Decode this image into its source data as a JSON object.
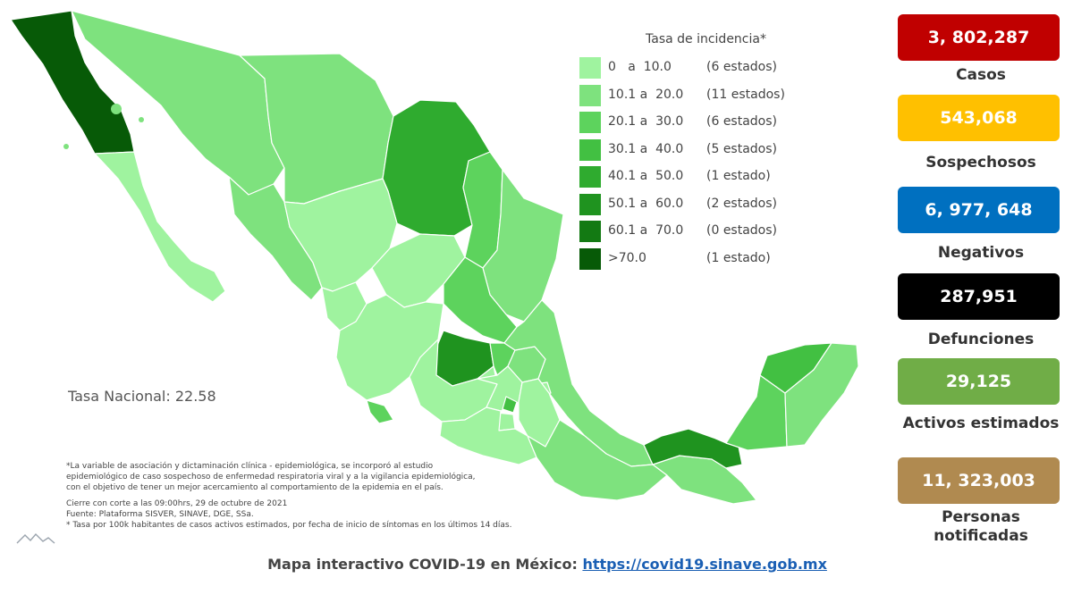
{
  "map": {
    "legend_title": "Tasa de incidencia*",
    "legend": [
      {
        "range": "0   a  10.0",
        "count": "(6 estados)",
        "color": "#9ff39f"
      },
      {
        "range": "10.1 a  20.0",
        "count": "(11 estados)",
        "color": "#7ee27e"
      },
      {
        "range": "20.1 a  30.0",
        "count": "(6 estados)",
        "color": "#5dd35d"
      },
      {
        "range": "30.1 a  40.0",
        "count": "(5 estados)",
        "color": "#42c042"
      },
      {
        "range": "40.1 a  50.0",
        "count": "(1 estado)",
        "color": "#2fab2f"
      },
      {
        "range": "50.1 a  60.0",
        "count": "(2 estados)",
        "color": "#1f931f"
      },
      {
        "range": "60.1 a  70.0",
        "count": "(0 estados)",
        "color": "#137a13"
      },
      {
        "range": ">70.0",
        "count": "(1 estado)",
        "color": "#075a07"
      }
    ],
    "tasa_nacional": "Tasa Nacional: 22.58"
  },
  "footnotes": {
    "lines_a": [
      "*La variable de asociación y dictaminación clínica - epidemiológica, se incorporó al estudio",
      "epidemiológico de caso sospechoso de enfermedad respiratoria viral y a la vigilancia epidemiológica,",
      "con el objetivo de tener un mejor acercamiento al comportamiento de la epidemia en el país."
    ],
    "lines_b": [
      "Cierre con corte a las 09:00hrs, 29 de octubre de 2021",
      "Fuente: Plataforma SISVER, SINAVE, DGE, SSa.",
      "* Tasa por 100k habitantes de casos activos estimados, por fecha de inicio de síntomas en los últimos 14 días."
    ]
  },
  "bottom": {
    "text": "Mapa interactivo COVID-19 en México: ",
    "link": "https://covid19.sinave.gob.mx"
  },
  "stats": [
    {
      "value": "3, 802,287",
      "label": "Casos",
      "color": "#c00000"
    },
    {
      "value": "543,068",
      "label": "Sospechosos",
      "color": "#ffc000"
    },
    {
      "value": "6, 977, 648",
      "label": "Negativos",
      "color": "#0070c0"
    },
    {
      "value": "287,951",
      "label": "Defunciones",
      "color": "#000000"
    },
    {
      "value": "29,125",
      "label": "Activos estimados",
      "color": "#70ad47"
    },
    {
      "value": "11, 323,003",
      "label": "Personas notificadas",
      "color": "#b08a50"
    }
  ]
}
